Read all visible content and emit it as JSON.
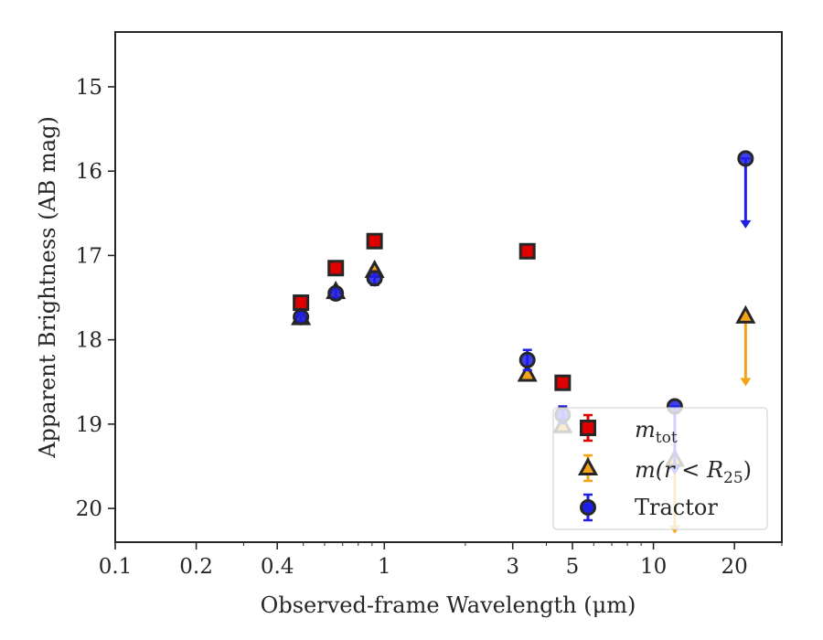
{
  "chart_data": {
    "type": "scatter",
    "xlabel": "Observed-frame Wavelength (μm)",
    "ylabel": "Apparent Brightness (AB mag)",
    "xscale": "log",
    "xlim": [
      0.1,
      30
    ],
    "ylim": [
      20.4,
      14.35
    ],
    "y_inverted": true,
    "x_ticks": [
      {
        "value": 0.1,
        "label": "0.1"
      },
      {
        "value": 0.2,
        "label": "0.2"
      },
      {
        "value": 0.4,
        "label": "0.4"
      },
      {
        "value": 1,
        "label": "1"
      },
      {
        "value": 3,
        "label": "3"
      },
      {
        "value": 5,
        "label": "5"
      },
      {
        "value": 10,
        "label": "10"
      },
      {
        "value": 20,
        "label": "20"
      }
    ],
    "y_ticks": [
      {
        "value": 15,
        "label": "15"
      },
      {
        "value": 16,
        "label": "16"
      },
      {
        "value": 17,
        "label": "17"
      },
      {
        "value": 18,
        "label": "18"
      },
      {
        "value": 19,
        "label": "19"
      },
      {
        "value": 20,
        "label": "20"
      }
    ],
    "legend_position": "lower-right",
    "series": [
      {
        "name": "m_tot",
        "legend_main": "m",
        "legend_sub": "tot",
        "marker": "square",
        "color": "#e00000",
        "points": [
          {
            "x": 0.49,
            "y": 17.56,
            "err": 0.05
          },
          {
            "x": 0.66,
            "y": 17.15,
            "err": 0.04
          },
          {
            "x": 0.92,
            "y": 16.83,
            "err": 0.03
          },
          {
            "x": 3.4,
            "y": 16.95,
            "err": 0.04
          },
          {
            "x": 4.6,
            "y": 18.51,
            "err": 0.06
          }
        ]
      },
      {
        "name": "m(r < R25)",
        "legend_text": "m(r < R",
        "legend_sub": "25",
        "legend_close": ")",
        "marker": "triangle",
        "color": "#f5a316",
        "points": [
          {
            "x": 0.49,
            "y": 17.74,
            "err": 0.05
          },
          {
            "x": 0.66,
            "y": 17.43,
            "err": 0.04
          },
          {
            "x": 0.92,
            "y": 17.18,
            "err": 0.03
          },
          {
            "x": 3.4,
            "y": 18.41,
            "err": 0.05
          },
          {
            "x": 4.6,
            "y": 19.02,
            "err": 0.08
          },
          {
            "x": 12,
            "y": 19.42,
            "upper_limit": true,
            "arrow_to": 20.3
          },
          {
            "x": 22,
            "y": 17.72,
            "upper_limit": true,
            "arrow_to": 18.55
          }
        ]
      },
      {
        "name": "Tractor",
        "legend_text": "Tractor",
        "marker": "circle",
        "color": "#1f1fe6",
        "points": [
          {
            "x": 0.49,
            "y": 17.73,
            "err": 0.05
          },
          {
            "x": 0.66,
            "y": 17.45,
            "err": 0.07
          },
          {
            "x": 0.92,
            "y": 17.27,
            "err": 0.08
          },
          {
            "x": 3.4,
            "y": 18.24,
            "err": 0.12
          },
          {
            "x": 4.6,
            "y": 18.89,
            "err": 0.1
          },
          {
            "x": 12,
            "y": 18.79,
            "upper_limit": true,
            "arrow_to": 19.6
          },
          {
            "x": 22,
            "y": 15.85,
            "upper_limit": true,
            "arrow_to": 16.68
          }
        ]
      }
    ]
  }
}
